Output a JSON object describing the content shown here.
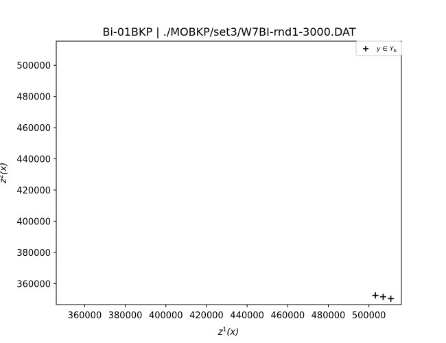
{
  "chart_data": {
    "type": "scatter",
    "title": "Bi-01BKP | ./MOBKP/set3/W7BI-rnd1-3000.DAT",
    "xlabel": "z¹(x)",
    "ylabel": "z²(x)",
    "xlim": [
      346000,
      516000
    ],
    "ylim": [
      346500,
      515500
    ],
    "xticks": [
      360000,
      380000,
      400000,
      420000,
      440000,
      460000,
      480000,
      500000
    ],
    "yticks": [
      360000,
      380000,
      400000,
      420000,
      440000,
      460000,
      480000,
      500000
    ],
    "grid": false,
    "legend_position": "top-right",
    "marker": "plus",
    "marker_color": "#000000",
    "series": [
      {
        "name": "y ∈ Y_N",
        "points": [
          {
            "x": 503200,
            "y": 352400
          },
          {
            "x": 507000,
            "y": 351500
          },
          {
            "x": 510800,
            "y": 350300
          }
        ]
      }
    ]
  }
}
